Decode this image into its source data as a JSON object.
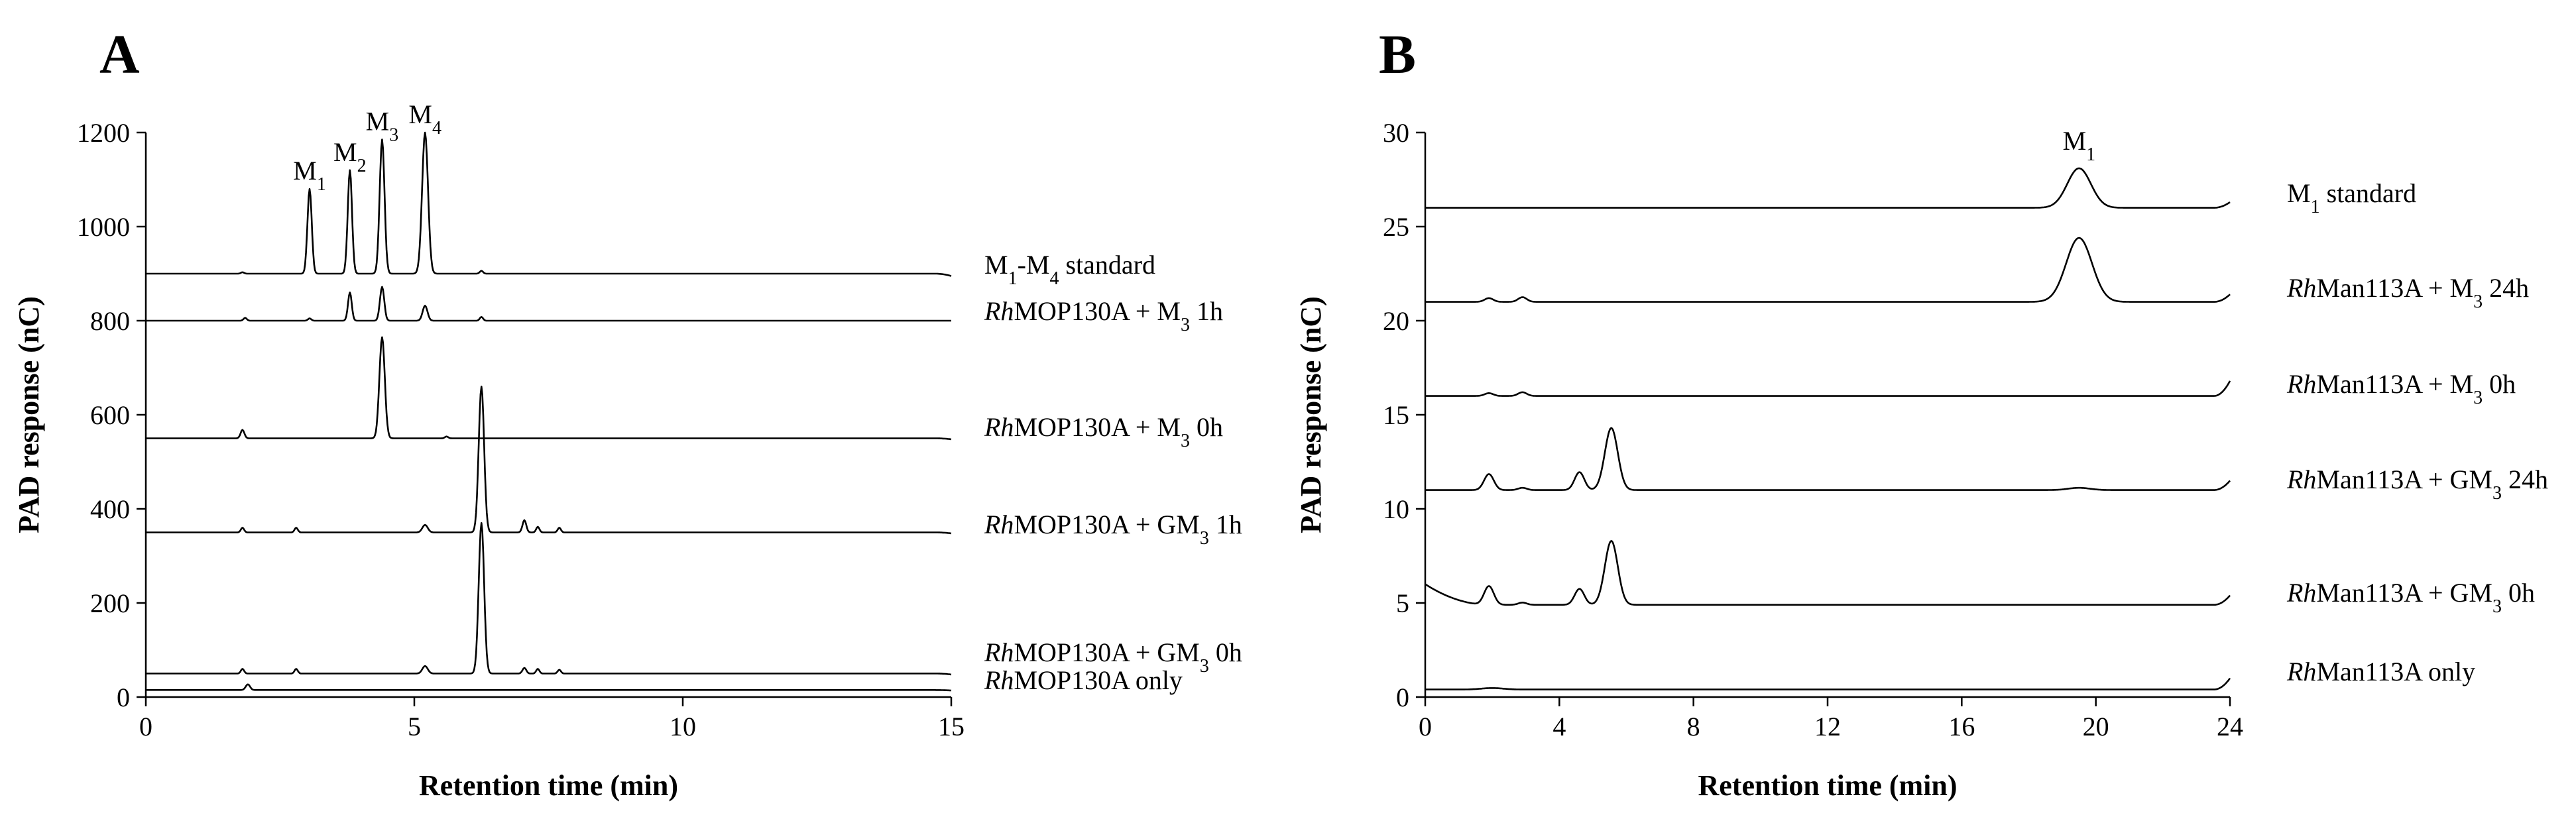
{
  "chart_data": [
    {
      "panel": "A",
      "type": "line",
      "xlabel": "Retention time (min)",
      "ylabel": "PAD response (nC)",
      "xlim": [
        0,
        15
      ],
      "ylim": [
        0,
        1200
      ],
      "xticks": [
        0,
        5,
        10,
        15
      ],
      "yticks": [
        0,
        200,
        400,
        600,
        800,
        1000,
        1200
      ],
      "peak_labels": [
        {
          "text": "M",
          "sub": "1",
          "x": 3.05,
          "y": 1080
        },
        {
          "text": "M",
          "sub": "2",
          "x": 3.8,
          "y": 1120
        },
        {
          "text": "M",
          "sub": "3",
          "x": 4.4,
          "y": 1185
        },
        {
          "text": "M",
          "sub": "4",
          "x": 5.2,
          "y": 1200
        }
      ],
      "series": [
        {
          "name_parts": [
            [
              "M",
              false,
              false
            ],
            [
              "1",
              false,
              true
            ],
            [
              "-M",
              false,
              false
            ],
            [
              "4",
              false,
              true
            ],
            [
              " standard",
              false,
              false
            ]
          ],
          "baseline": 900,
          "end_value": 895,
          "peaks": [
            [
              3.05,
              180,
              0.04
            ],
            [
              3.8,
              220,
              0.04
            ],
            [
              4.4,
              285,
              0.045
            ],
            [
              5.2,
              300,
              0.055
            ],
            [
              6.25,
              6,
              0.03
            ],
            [
              1.8,
              3,
              0.03
            ]
          ]
        },
        {
          "name_parts": [
            [
              "Rh",
              true,
              false
            ],
            [
              "MOP130A + M",
              false,
              false
            ],
            [
              "3",
              false,
              true
            ],
            [
              " 1h",
              false,
              false
            ]
          ],
          "baseline": 800,
          "end_value": 800,
          "peaks": [
            [
              1.85,
              6,
              0.03
            ],
            [
              3.05,
              5,
              0.03
            ],
            [
              3.8,
              60,
              0.035
            ],
            [
              4.4,
              72,
              0.04
            ],
            [
              5.2,
              32,
              0.045
            ],
            [
              6.25,
              8,
              0.03
            ]
          ]
        },
        {
          "name_parts": [
            [
              "Rh",
              true,
              false
            ],
            [
              "MOP130A + M",
              false,
              false
            ],
            [
              "3",
              false,
              true
            ],
            [
              " 0h",
              false,
              false
            ]
          ],
          "baseline": 550,
          "end_value": 548,
          "peaks": [
            [
              1.8,
              18,
              0.035
            ],
            [
              4.4,
              215,
              0.05
            ],
            [
              5.6,
              4,
              0.03
            ]
          ]
        },
        {
          "name_parts": [
            [
              "Rh",
              true,
              false
            ],
            [
              "MOP130A + GM",
              false,
              false
            ],
            [
              "3",
              false,
              true
            ],
            [
              " 1h",
              false,
              false
            ]
          ],
          "baseline": 350,
          "end_value": 348,
          "peaks": [
            [
              1.8,
              10,
              0.03
            ],
            [
              2.8,
              10,
              0.03
            ],
            [
              5.2,
              16,
              0.05
            ],
            [
              6.25,
              310,
              0.05
            ],
            [
              7.05,
              26,
              0.035
            ],
            [
              7.3,
              12,
              0.03
            ],
            [
              7.7,
              10,
              0.03
            ]
          ]
        },
        {
          "name_parts": [
            [
              "Rh",
              true,
              false
            ],
            [
              "MOP130A + GM",
              false,
              false
            ],
            [
              "3",
              false,
              true
            ],
            [
              " 0h",
              false,
              false
            ]
          ],
          "baseline": 50,
          "end_value": 48,
          "peaks": [
            [
              1.8,
              10,
              0.03
            ],
            [
              2.8,
              10,
              0.03
            ],
            [
              5.2,
              16,
              0.05
            ],
            [
              6.25,
              320,
              0.05
            ],
            [
              7.05,
              12,
              0.035
            ],
            [
              7.3,
              10,
              0.03
            ],
            [
              7.7,
              8,
              0.03
            ]
          ]
        },
        {
          "name_parts": [
            [
              "Rh",
              true,
              false
            ],
            [
              "MOP130A only",
              false,
              false
            ]
          ],
          "baseline": 15,
          "end_value": 14,
          "peaks": [
            [
              1.9,
              12,
              0.04
            ]
          ]
        }
      ]
    },
    {
      "panel": "B",
      "type": "line",
      "xlabel": "Retention time (min)",
      "ylabel": "PAD response (nC)",
      "xlim": [
        0,
        24
      ],
      "ylim": [
        0,
        30
      ],
      "xticks": [
        0,
        4,
        8,
        12,
        16,
        20,
        24
      ],
      "yticks": [
        0,
        5,
        10,
        15,
        20,
        25,
        30
      ],
      "peak_labels": [
        {
          "text": "M",
          "sub": "1",
          "x": 19.5,
          "y": 28.6
        }
      ],
      "series": [
        {
          "name_parts": [
            [
              "M",
              false,
              false
            ],
            [
              "1",
              false,
              true
            ],
            [
              " standard",
              false,
              false
            ]
          ],
          "baseline": 26.0,
          "end_value": 26.3,
          "peaks": [
            [
              19.5,
              2.1,
              0.22
            ]
          ]
        },
        {
          "name_parts": [
            [
              "Rh",
              true,
              false
            ],
            [
              "Man113A + M",
              false,
              false
            ],
            [
              "3",
              false,
              true
            ],
            [
              " 24h",
              false,
              false
            ]
          ],
          "baseline": 21.0,
          "end_value": 21.4,
          "peaks": [
            [
              1.9,
              0.2,
              0.08
            ],
            [
              2.9,
              0.25,
              0.08
            ],
            [
              19.5,
              3.4,
              0.24
            ]
          ]
        },
        {
          "name_parts": [
            [
              "Rh",
              true,
              false
            ],
            [
              "Man113A + M",
              false,
              false
            ],
            [
              "3",
              false,
              true
            ],
            [
              " 0h",
              false,
              false
            ]
          ],
          "baseline": 16.0,
          "end_value": 16.8,
          "peaks": [
            [
              1.9,
              0.15,
              0.08
            ],
            [
              2.9,
              0.2,
              0.08
            ]
          ]
        },
        {
          "name_parts": [
            [
              "Rh",
              true,
              false
            ],
            [
              "Man113A + GM",
              false,
              false
            ],
            [
              "3",
              false,
              true
            ],
            [
              " 24h",
              false,
              false
            ]
          ],
          "baseline": 11.0,
          "end_value": 11.5,
          "peaks": [
            [
              1.9,
              0.85,
              0.09
            ],
            [
              2.9,
              0.12,
              0.08
            ],
            [
              4.6,
              0.95,
              0.09
            ],
            [
              5.55,
              3.3,
              0.12
            ],
            [
              19.5,
              0.12,
              0.2
            ]
          ]
        },
        {
          "name_parts": [
            [
              "Rh",
              true,
              false
            ],
            [
              "Man113A + GM",
              false,
              false
            ],
            [
              "3",
              false,
              true
            ],
            [
              " 0h",
              false,
              false
            ]
          ],
          "baseline": 4.9,
          "start_value": 6.0,
          "end_value": 5.4,
          "peaks": [
            [
              1.9,
              1.0,
              0.09
            ],
            [
              2.9,
              0.12,
              0.08
            ],
            [
              4.6,
              0.85,
              0.09
            ],
            [
              5.55,
              3.4,
              0.12
            ]
          ]
        },
        {
          "name_parts": [
            [
              "Rh",
              true,
              false
            ],
            [
              "Man113A only",
              false,
              false
            ]
          ],
          "baseline": 0.4,
          "end_value": 1.0,
          "peaks": [
            [
              2.0,
              0.08,
              0.2
            ]
          ]
        }
      ]
    }
  ]
}
